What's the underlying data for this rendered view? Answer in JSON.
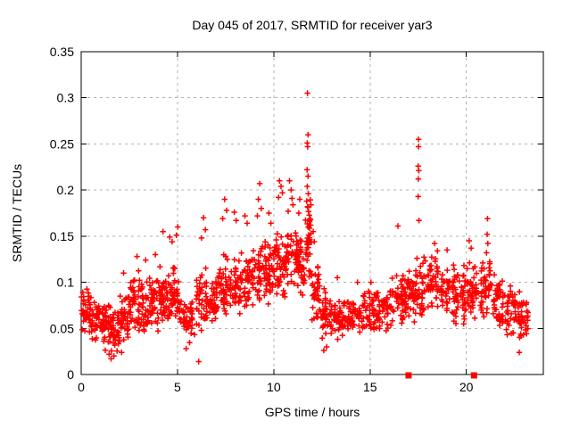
{
  "figure": {
    "background": "#ffffff",
    "text_color": "#000000",
    "border_color": "#000000"
  },
  "chart_data": {
    "type": "scatter",
    "title": "Day 045 of 2017, SRMTID for receiver yar3",
    "xlabel": "GPS time / hours",
    "ylabel": "SRMTID / TECUs",
    "xlim": [
      0,
      24
    ],
    "ylim": [
      0,
      0.35
    ],
    "xtick_values": [
      0,
      5,
      10,
      15,
      20
    ],
    "xtick_labels": [
      "0",
      "5",
      "10",
      "15",
      "20"
    ],
    "ytick_values": [
      0,
      0.05,
      0.1,
      0.15,
      0.2,
      0.25,
      0.3,
      0.35
    ],
    "ytick_labels": [
      "0",
      "0.05",
      "0.1",
      "0.15",
      "0.2",
      "0.25",
      "0.3",
      "0.35"
    ],
    "grid": {
      "show": true,
      "style": "dashed",
      "color": "#b0b0b0"
    },
    "legend": {
      "show": false
    },
    "marker": {
      "shape": "plus",
      "color": "#ff0000",
      "size": 6.4,
      "stroke_width": 1.5
    },
    "note": "dense 30-sec scatter encoded as density bins [x_start,x_end,y_low,y_high,count] plus explicit outlier points",
    "series": [
      {
        "name": "SRMTID",
        "density_bins": [
          [
            0.0,
            0.5,
            0.045,
            0.1,
            40
          ],
          [
            0.5,
            1.0,
            0.035,
            0.085,
            40
          ],
          [
            1.0,
            1.5,
            0.026,
            0.08,
            42
          ],
          [
            1.5,
            2.0,
            0.022,
            0.072,
            40
          ],
          [
            2.0,
            2.5,
            0.03,
            0.095,
            40
          ],
          [
            2.5,
            3.0,
            0.04,
            0.115,
            42
          ],
          [
            3.0,
            3.5,
            0.04,
            0.11,
            40
          ],
          [
            3.5,
            4.0,
            0.04,
            0.115,
            40
          ],
          [
            4.0,
            4.5,
            0.045,
            0.12,
            42
          ],
          [
            4.5,
            5.1,
            0.045,
            0.125,
            46
          ],
          [
            5.1,
            5.9,
            0.032,
            0.085,
            46
          ],
          [
            5.9,
            6.6,
            0.045,
            0.12,
            45
          ],
          [
            6.6,
            7.1,
            0.05,
            0.105,
            38
          ],
          [
            7.1,
            7.7,
            0.055,
            0.14,
            45
          ],
          [
            7.7,
            8.3,
            0.055,
            0.135,
            45
          ],
          [
            8.3,
            9.0,
            0.065,
            0.15,
            48
          ],
          [
            9.0,
            9.6,
            0.07,
            0.155,
            45
          ],
          [
            9.6,
            10.1,
            0.075,
            0.15,
            42
          ],
          [
            10.1,
            10.6,
            0.08,
            0.16,
            45
          ],
          [
            10.6,
            11.2,
            0.085,
            0.17,
            48
          ],
          [
            11.2,
            11.6,
            0.08,
            0.16,
            40
          ],
          [
            11.6,
            11.95,
            0.1,
            0.2,
            40
          ],
          [
            11.95,
            12.4,
            0.055,
            0.13,
            40
          ],
          [
            12.4,
            13.0,
            0.035,
            0.095,
            42
          ],
          [
            13.0,
            13.7,
            0.035,
            0.085,
            44
          ],
          [
            13.7,
            14.5,
            0.038,
            0.085,
            46
          ],
          [
            14.5,
            15.3,
            0.04,
            0.092,
            46
          ],
          [
            15.3,
            16.0,
            0.045,
            0.095,
            42
          ],
          [
            16.0,
            16.7,
            0.05,
            0.11,
            44
          ],
          [
            16.7,
            17.3,
            0.055,
            0.12,
            44
          ],
          [
            17.3,
            17.8,
            0.06,
            0.13,
            40
          ],
          [
            17.8,
            18.6,
            0.06,
            0.13,
            48
          ],
          [
            18.6,
            19.4,
            0.055,
            0.12,
            48
          ],
          [
            19.4,
            20.0,
            0.05,
            0.12,
            42
          ],
          [
            20.0,
            20.6,
            0.05,
            0.13,
            44
          ],
          [
            20.6,
            21.3,
            0.055,
            0.13,
            44
          ],
          [
            21.3,
            22.0,
            0.045,
            0.115,
            44
          ],
          [
            22.0,
            22.6,
            0.038,
            0.1,
            42
          ],
          [
            22.6,
            23.2,
            0.03,
            0.092,
            42
          ]
        ],
        "outliers": [
          [
            11.75,
            0.305
          ],
          [
            11.78,
            0.26
          ],
          [
            11.74,
            0.251
          ],
          [
            11.76,
            0.247
          ],
          [
            11.73,
            0.222
          ],
          [
            11.78,
            0.215
          ],
          [
            11.74,
            0.204
          ],
          [
            11.79,
            0.196
          ],
          [
            11.71,
            0.188
          ],
          [
            11.76,
            0.182
          ],
          [
            17.52,
            0.255
          ],
          [
            17.52,
            0.247
          ],
          [
            17.5,
            0.226
          ],
          [
            17.53,
            0.221
          ],
          [
            17.51,
            0.212
          ],
          [
            17.5,
            0.193
          ],
          [
            17.54,
            0.167
          ],
          [
            16.45,
            0.161
          ],
          [
            9.27,
            0.207
          ],
          [
            9.2,
            0.19
          ],
          [
            9.35,
            0.18
          ],
          [
            9.15,
            0.172
          ],
          [
            10.3,
            0.21
          ],
          [
            10.38,
            0.204
          ],
          [
            10.45,
            0.197
          ],
          [
            10.25,
            0.192
          ],
          [
            10.82,
            0.21
          ],
          [
            10.9,
            0.2
          ],
          [
            10.95,
            0.191
          ],
          [
            11.0,
            0.184
          ],
          [
            10.75,
            0.177
          ],
          [
            7.45,
            0.19
          ],
          [
            7.55,
            0.178
          ],
          [
            7.35,
            0.169
          ],
          [
            7.95,
            0.176
          ],
          [
            8.05,
            0.167
          ],
          [
            8.5,
            0.172
          ],
          [
            8.62,
            0.164
          ],
          [
            6.35,
            0.17
          ],
          [
            6.45,
            0.157
          ],
          [
            6.25,
            0.148
          ],
          [
            5.02,
            0.16
          ],
          [
            4.95,
            0.151
          ],
          [
            4.25,
            0.155
          ],
          [
            4.6,
            0.149
          ],
          [
            4.72,
            0.144
          ],
          [
            9.75,
            0.175
          ],
          [
            9.85,
            0.164
          ],
          [
            11.35,
            0.19
          ],
          [
            11.3,
            0.175
          ],
          [
            12.05,
            0.155
          ],
          [
            12.1,
            0.144
          ],
          [
            13.3,
            0.105
          ],
          [
            14.35,
            0.1
          ],
          [
            15.05,
            0.1
          ],
          [
            21.1,
            0.169
          ],
          [
            21.08,
            0.152
          ],
          [
            21.12,
            0.142
          ],
          [
            21.05,
            0.132
          ],
          [
            20.15,
            0.145
          ],
          [
            20.25,
            0.137
          ],
          [
            18.35,
            0.142
          ],
          [
            18.5,
            0.134
          ],
          [
            19.0,
            0.135
          ],
          [
            2.9,
            0.128
          ],
          [
            3.35,
            0.124
          ],
          [
            3.85,
            0.13
          ],
          [
            2.2,
            0.11
          ],
          [
            1.55,
            0.017
          ],
          [
            1.7,
            0.02
          ],
          [
            1.45,
            0.022
          ],
          [
            2.1,
            0.024
          ],
          [
            5.45,
            0.028
          ],
          [
            6.1,
            0.014
          ],
          [
            12.6,
            0.026
          ],
          [
            12.75,
            0.03
          ],
          [
            22.75,
            0.024
          ]
        ],
        "zero_value_markers": {
          "shape": "filled-square",
          "color": "#ff0000",
          "size": 7,
          "x_hours": [
            17.0,
            20.4
          ],
          "y": 0
        }
      }
    ],
    "random_seed": 45
  }
}
